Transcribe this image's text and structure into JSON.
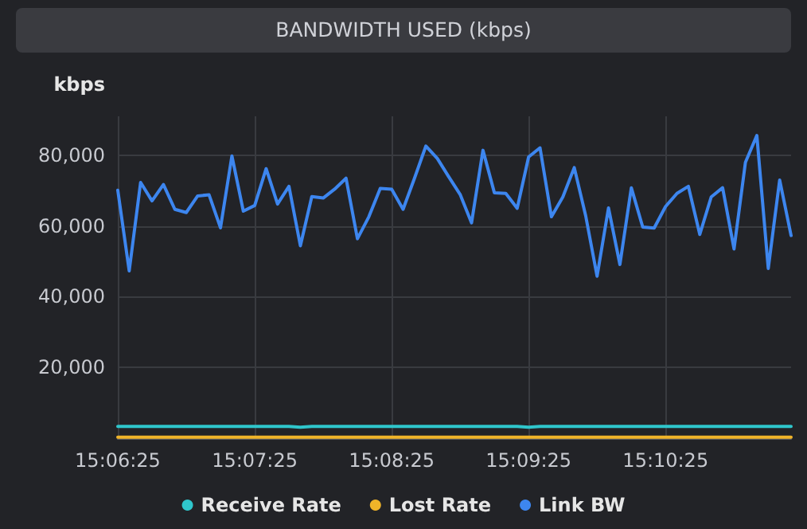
{
  "chart_data": {
    "type": "line",
    "title": "BANDWIDTH USED (kbps)",
    "ylabel": "kbps",
    "categories": [
      "15:06:25",
      null,
      null,
      null,
      null,
      null,
      null,
      null,
      null,
      null,
      null,
      null,
      "15:07:25",
      null,
      null,
      null,
      null,
      null,
      null,
      null,
      null,
      null,
      null,
      null,
      "15:08:25",
      null,
      null,
      null,
      null,
      null,
      null,
      null,
      null,
      null,
      null,
      null,
      "15:09:25",
      null,
      null,
      null,
      null,
      null,
      null,
      null,
      null,
      null,
      null,
      null,
      "15:10:25",
      null,
      null,
      null,
      null,
      null,
      null,
      null,
      null,
      null,
      null,
      null
    ],
    "series": [
      {
        "name": "Receive Rate",
        "color": "#2fc6cc",
        "values": [
          3300,
          3300,
          3300,
          3300,
          3300,
          3300,
          3300,
          3300,
          3300,
          3300,
          3300,
          3300,
          3300,
          3300,
          3300,
          3300,
          3100,
          3300,
          3300,
          3300,
          3300,
          3300,
          3300,
          3300,
          3300,
          3300,
          3300,
          3300,
          3300,
          3300,
          3300,
          3300,
          3300,
          3300,
          3300,
          3300,
          3100,
          3300,
          3300,
          3300,
          3300,
          3300,
          3300,
          3300,
          3300,
          3300,
          3300,
          3300,
          3300,
          3300,
          3300,
          3300,
          3300,
          3300,
          3300,
          3300,
          3300,
          3300,
          3300,
          3300
        ]
      },
      {
        "name": "Lost Rate",
        "color": "#f0b429",
        "values": [
          300,
          300,
          300,
          300,
          300,
          300,
          300,
          300,
          300,
          300,
          300,
          300,
          300,
          300,
          300,
          300,
          300,
          300,
          300,
          300,
          300,
          300,
          300,
          300,
          300,
          300,
          300,
          300,
          300,
          300,
          300,
          300,
          300,
          300,
          300,
          300,
          300,
          300,
          300,
          300,
          300,
          300,
          300,
          300,
          300,
          300,
          300,
          300,
          300,
          300,
          300,
          300,
          300,
          300,
          300,
          300,
          300,
          300,
          300,
          300
        ]
      },
      {
        "name": "Link BW",
        "color": "#3d86ef",
        "values": [
          70100,
          47300,
          72300,
          67100,
          71700,
          64700,
          63800,
          68500,
          68800,
          59500,
          79800,
          64200,
          65800,
          76200,
          66200,
          71200,
          54400,
          68300,
          67900,
          70400,
          73500,
          56400,
          62600,
          70600,
          70400,
          64700,
          73500,
          82600,
          79100,
          73900,
          68900,
          60900,
          81400,
          69400,
          69200,
          65000,
          79500,
          82100,
          62600,
          68200,
          76500,
          62900,
          45800,
          65100,
          49100,
          70800,
          59700,
          59400,
          65500,
          69200,
          71200,
          57600,
          68200,
          70800,
          53500,
          78000,
          85600,
          48000,
          73000,
          57300
        ]
      }
    ],
    "ylim": [
      0,
      91000
    ],
    "yticks": [
      {
        "value": 20000,
        "label": "20,000"
      },
      {
        "value": 40000,
        "label": "40,000"
      },
      {
        "value": 60000,
        "label": "60,000"
      },
      {
        "value": 80000,
        "label": "80,000"
      }
    ],
    "grid": true,
    "legend": "bottom",
    "marker": "none",
    "line_style": "solid"
  }
}
